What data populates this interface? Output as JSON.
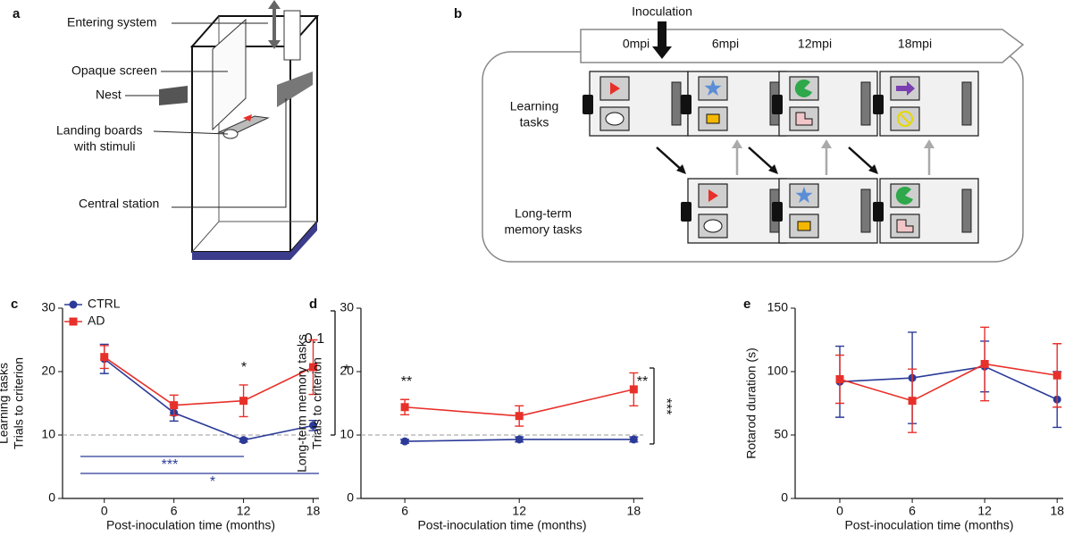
{
  "panel_a": {
    "label": "a",
    "labels": [
      "Entering system",
      "Opaque screen",
      "Nest",
      "Landing boards",
      "with stimuli",
      "Central station"
    ]
  },
  "panel_b": {
    "label": "b",
    "inoculation": "Inoculation",
    "timepoints": [
      "0mpi",
      "6mpi",
      "12mpi",
      "18mpi"
    ],
    "learning": [
      "Learning",
      "tasks"
    ],
    "memory": [
      "Long-term",
      "memory tasks"
    ]
  },
  "chart_data": [
    {
      "type": "line",
      "label": "c",
      "xlabel": "Post-inoculation time (months)",
      "ylabel": [
        "Learning tasks",
        "Trials to criterion"
      ],
      "x": [
        0,
        6,
        12,
        18
      ],
      "xlim": [
        -3.6,
        18.5
      ],
      "xticks": [
        0,
        6,
        12,
        18
      ],
      "ylim": [
        0,
        30
      ],
      "yticks": [
        0,
        10,
        20,
        30
      ],
      "hline": 10,
      "legend": "upper left",
      "series": [
        {
          "name": "CTRL",
          "color": "#2b3a98",
          "marker": "circle",
          "values": [
            22,
            13.5,
            9.2,
            11.5
          ],
          "errors": [
            2.3,
            1.3,
            0.3,
            0.8
          ]
        },
        {
          "name": "AD",
          "color": "#e8302a",
          "marker": "square",
          "values": [
            22.3,
            14.7,
            15.4,
            20.7
          ],
          "errors": [
            1.8,
            1.6,
            2.5,
            4.3
          ]
        }
      ],
      "annotations": [
        "*",
        "0.1",
        "*",
        "***",
        "*"
      ]
    },
    {
      "type": "line",
      "label": "d",
      "xlabel": "Post-inoculation time (months)",
      "ylabel": [
        "Long-term memory tasks",
        "Trials to criterion"
      ],
      "x": [
        6,
        12,
        18
      ],
      "xlim": [
        3.7,
        18.5
      ],
      "xticks": [
        6,
        12,
        18
      ],
      "ylim": [
        0,
        30
      ],
      "yticks": [
        0,
        10,
        20,
        30
      ],
      "hline": 10,
      "series": [
        {
          "color": "#2b3a98",
          "marker": "circle",
          "values": [
            9,
            9.3,
            9.3
          ],
          "errors": [
            0.3,
            0.4,
            0.4
          ]
        },
        {
          "color": "#e8302a",
          "marker": "square",
          "values": [
            14.4,
            13,
            17.2
          ],
          "errors": [
            1.2,
            1.6,
            2.6
          ]
        }
      ],
      "annotations": [
        "**",
        "**",
        "***"
      ]
    },
    {
      "type": "line",
      "label": "e",
      "xlabel": "Post-inoculation time (months)",
      "ylabel": [
        "Rotarod duration (s)"
      ],
      "x": [
        0,
        6,
        12,
        18
      ],
      "xlim": [
        -3.7,
        18.5
      ],
      "xticks": [
        0,
        6,
        12,
        18
      ],
      "ylim": [
        0,
        150
      ],
      "yticks": [
        0,
        50,
        100,
        150
      ],
      "series": [
        {
          "color": "#2b3a98",
          "marker": "circle",
          "values": [
            92,
            95,
            104,
            78
          ],
          "errors": [
            28,
            36,
            20,
            22
          ]
        },
        {
          "color": "#e8302a",
          "marker": "square",
          "values": [
            94,
            77,
            106,
            97
          ],
          "errors": [
            19,
            25,
            29,
            25
          ]
        }
      ],
      "annotations": []
    }
  ]
}
